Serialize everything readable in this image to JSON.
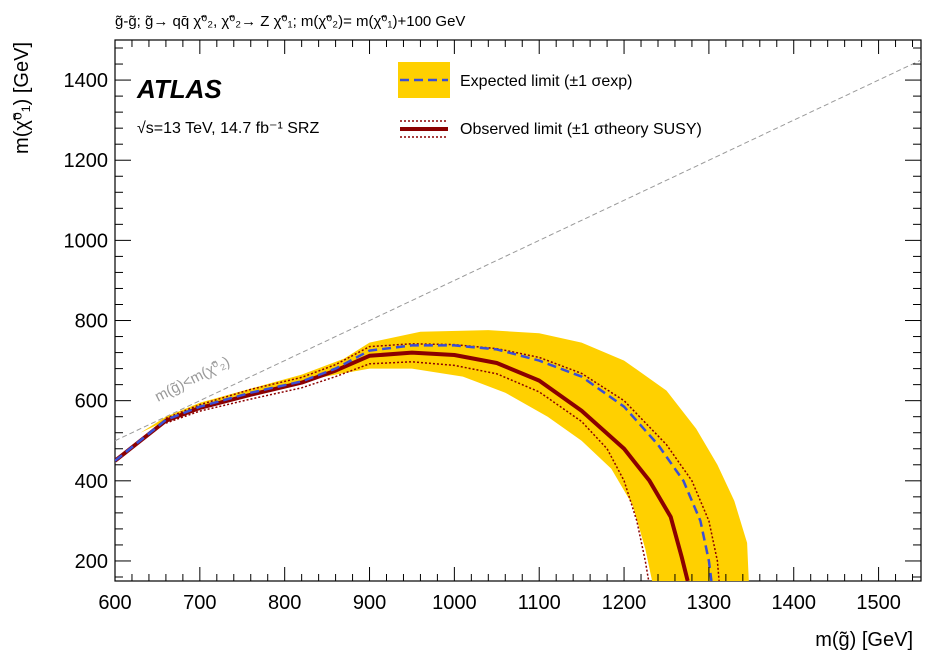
{
  "chart_data": {
    "type": "line",
    "title": "g̃-g̃; g̃→ qq̄ χ̃⁰₂, χ̃⁰₂→ Z χ̃⁰₁; m(χ̃⁰₂)= m(χ̃⁰₁)+100 GeV",
    "xlabel": "m(g̃) [GeV]",
    "ylabel": "m(χ̃⁰₁) [GeV]",
    "xlim": [
      600,
      1550
    ],
    "ylim": [
      150,
      1500
    ],
    "xticks": [
      600,
      700,
      800,
      900,
      1000,
      1100,
      1200,
      1300,
      1400,
      1500
    ],
    "yticks": [
      200,
      400,
      600,
      800,
      1000,
      1200,
      1400
    ],
    "grid": false,
    "legend_position": "top-center",
    "annotations": {
      "experiment": "ATLAS",
      "lumi": "√s=13 TeV, 14.7 fb⁻¹ SRZ",
      "diagonal_label": "m(g̃)<m(χ̃⁰₂)"
    },
    "legend": [
      {
        "label": "Expected limit (±1 σexp)",
        "style": "blue-dashed-on-yellow"
      },
      {
        "label": "Observed limit (±1 σtheory SUSY)",
        "style": "darkred-solid-with-dotted"
      }
    ],
    "colors": {
      "band": "#ffd000",
      "expected": "#3a4fd6",
      "observed": "#8b0000",
      "diagonal": "#999999"
    },
    "diagonal": {
      "x": [
        600,
        1550
      ],
      "y": [
        500,
        1450
      ]
    },
    "expected_band_upper": {
      "x": [
        660,
        700,
        760,
        820,
        870,
        900,
        960,
        1040,
        1100,
        1150,
        1200,
        1250,
        1285,
        1310,
        1330,
        1345,
        1347
      ],
      "y": [
        560,
        595,
        630,
        665,
        705,
        745,
        772,
        776,
        768,
        745,
        700,
        625,
        530,
        440,
        350,
        245,
        150
      ]
    },
    "expected_band_lower": {
      "x": [
        1233,
        1225,
        1210,
        1185,
        1150,
        1110,
        1060,
        1010,
        950,
        900,
        860,
        800,
        740,
        680,
        630
      ],
      "y": [
        150,
        230,
        340,
        430,
        500,
        560,
        620,
        660,
        680,
        680,
        665,
        640,
        610,
        570,
        520
      ]
    },
    "series": [
      {
        "name": "Expected limit",
        "x": [
          600,
          660,
          700,
          760,
          820,
          860,
          900,
          950,
          1000,
          1050,
          1100,
          1150,
          1200,
          1240,
          1270,
          1290,
          1300,
          1303
        ],
        "y": [
          450,
          552,
          585,
          620,
          648,
          680,
          725,
          738,
          738,
          728,
          700,
          660,
          585,
          490,
          400,
          300,
          200,
          150
        ]
      },
      {
        "name": "Observed limit",
        "x": [
          600,
          660,
          700,
          760,
          820,
          860,
          900,
          950,
          1000,
          1050,
          1100,
          1150,
          1200,
          1230,
          1255,
          1268,
          1275
        ],
        "y": [
          450,
          550,
          582,
          615,
          645,
          675,
          712,
          720,
          714,
          694,
          650,
          575,
          480,
          400,
          310,
          210,
          150
        ]
      },
      {
        "name": "Observed limit +1σ",
        "x": [
          660,
          700,
          760,
          820,
          860,
          900,
          950,
          1000,
          1050,
          1100,
          1150,
          1200,
          1250,
          1280,
          1300,
          1310,
          1312
        ],
        "y": [
          556,
          590,
          628,
          658,
          690,
          735,
          742,
          740,
          730,
          708,
          668,
          600,
          490,
          400,
          300,
          200,
          150
        ]
      },
      {
        "name": "Observed limit -1σ",
        "x": [
          660,
          700,
          760,
          820,
          860,
          900,
          950,
          1000,
          1050,
          1100,
          1150,
          1180,
          1200,
          1215,
          1225,
          1229
        ],
        "y": [
          544,
          574,
          604,
          632,
          660,
          692,
          697,
          688,
          667,
          622,
          548,
          480,
          400,
          300,
          200,
          150
        ]
      }
    ]
  }
}
